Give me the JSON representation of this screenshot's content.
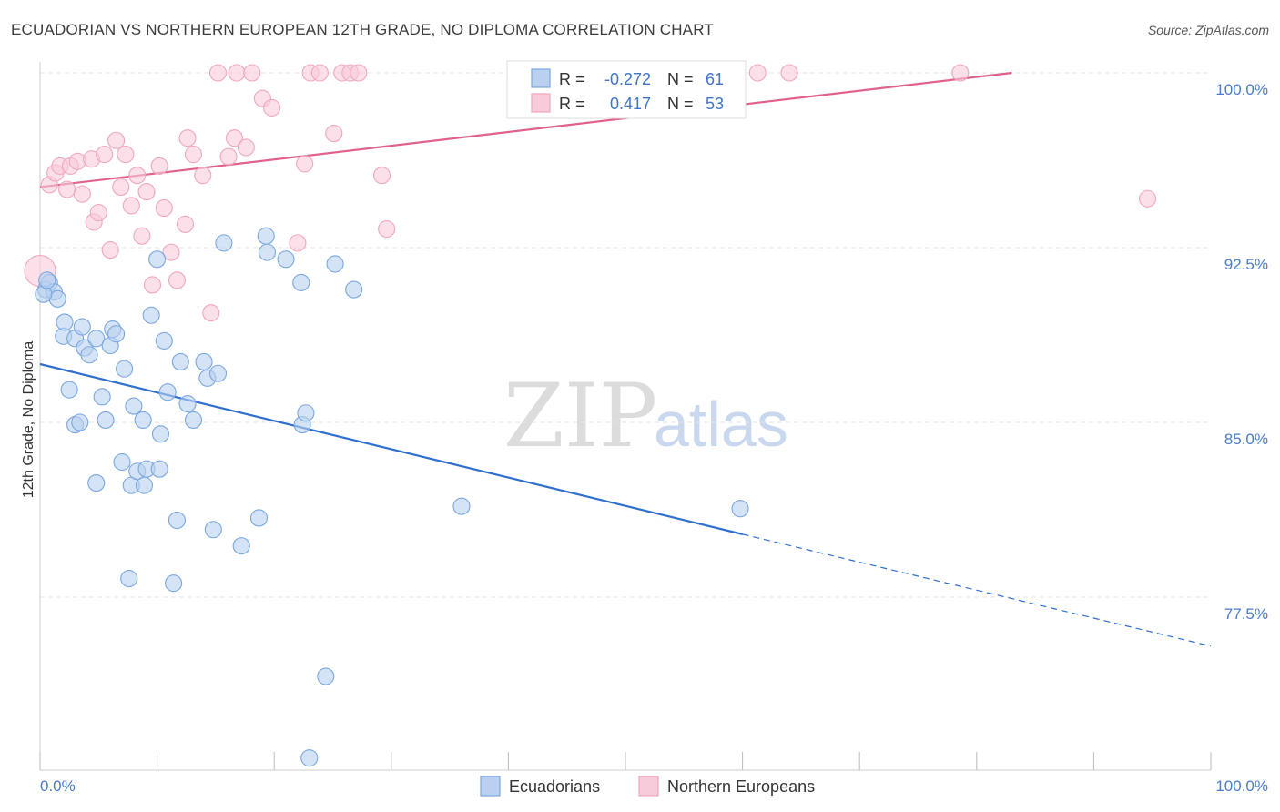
{
  "chart_data": {
    "type": "scatter",
    "title": "ECUADORIAN VS NORTHERN EUROPEAN 12TH GRADE, NO DIPLOMA CORRELATION CHART",
    "source": "Source: ZipAtlas.com",
    "ylabel": "12th Grade, No Diploma",
    "xlabel": "",
    "xlim": [
      0,
      100
    ],
    "ylim": [
      70.0,
      101.0
    ],
    "x_tick_labels": [
      "0.0%",
      "100.0%"
    ],
    "y_ticks": [
      {
        "value": 100.0,
        "label": "100.0%"
      },
      {
        "value": 92.5,
        "label": "92.5%"
      },
      {
        "value": 85.0,
        "label": "85.0%"
      },
      {
        "value": 77.5,
        "label": "77.5%"
      }
    ],
    "grid": true,
    "legend_position": "top-center",
    "watermark": {
      "zip": "ZIP",
      "atlas": "atlas"
    },
    "legend": {
      "rows": [
        {
          "r_label": "R = ",
          "r_value": "-0.272",
          "n_label": "N = ",
          "n_value": "61"
        },
        {
          "r_label": "R = ",
          "r_value": "0.417",
          "n_label": "N = ",
          "n_value": "53"
        }
      ]
    },
    "series": [
      {
        "name": "Ecuadorians",
        "color": "#7aa7e0",
        "fill": "#b9d0f0",
        "line_color": "#2f6fce",
        "trend": {
          "x0": 0.0,
          "y0": 87.5,
          "x1": 60.0,
          "y1": 80.2,
          "dash_x1": 100.0,
          "dash_y1": 75.4
        },
        "points": [
          [
            0.5,
            90.7
          ],
          [
            0.8,
            91.0
          ],
          [
            1.2,
            90.6
          ],
          [
            1.5,
            90.3
          ],
          [
            2.0,
            88.7
          ],
          [
            2.1,
            89.3
          ],
          [
            2.5,
            86.4
          ],
          [
            3.0,
            88.6
          ],
          [
            3.0,
            84.9
          ],
          [
            3.4,
            85.0
          ],
          [
            3.6,
            89.1
          ],
          [
            3.8,
            88.2
          ],
          [
            4.2,
            87.9
          ],
          [
            4.8,
            88.6
          ],
          [
            4.8,
            82.4
          ],
          [
            5.3,
            86.1
          ],
          [
            5.6,
            85.1
          ],
          [
            6.0,
            88.3
          ],
          [
            6.2,
            89.0
          ],
          [
            6.5,
            88.8
          ],
          [
            7.0,
            83.3
          ],
          [
            7.2,
            87.3
          ],
          [
            7.6,
            78.3
          ],
          [
            7.8,
            82.3
          ],
          [
            8.0,
            85.7
          ],
          [
            8.3,
            82.9
          ],
          [
            8.8,
            85.1
          ],
          [
            8.9,
            82.3
          ],
          [
            9.1,
            83.0
          ],
          [
            9.5,
            89.6
          ],
          [
            10.0,
            92.0
          ],
          [
            10.2,
            83.0
          ],
          [
            10.3,
            84.5
          ],
          [
            10.6,
            88.5
          ],
          [
            10.9,
            86.3
          ],
          [
            11.4,
            78.1
          ],
          [
            11.7,
            80.8
          ],
          [
            12.0,
            87.6
          ],
          [
            12.6,
            85.8
          ],
          [
            13.1,
            85.1
          ],
          [
            14.0,
            87.6
          ],
          [
            14.3,
            86.9
          ],
          [
            14.8,
            80.4
          ],
          [
            15.2,
            87.1
          ],
          [
            15.7,
            92.7
          ],
          [
            17.2,
            79.7
          ],
          [
            18.7,
            80.9
          ],
          [
            19.3,
            93.0
          ],
          [
            19.4,
            92.3
          ],
          [
            21.0,
            92.0
          ],
          [
            22.3,
            91.0
          ],
          [
            22.4,
            84.9
          ],
          [
            22.7,
            85.4
          ],
          [
            23.0,
            70.6
          ],
          [
            24.4,
            74.1
          ],
          [
            25.2,
            91.8
          ],
          [
            26.8,
            90.7
          ],
          [
            36.0,
            81.4
          ],
          [
            59.8,
            81.3
          ],
          [
            0.3,
            90.5
          ],
          [
            0.6,
            91.1
          ]
        ]
      },
      {
        "name": "Northern Europeans",
        "color": "#f0a6bf",
        "fill": "#f8cbda",
        "line_color": "#e0628c",
        "trend": {
          "x0": 0.0,
          "y0": 95.1,
          "x1": 83.0,
          "y1": 100.0
        },
        "points": [
          [
            0.0,
            91.5
          ],
          [
            0.8,
            95.2
          ],
          [
            1.3,
            95.7
          ],
          [
            1.7,
            96.0
          ],
          [
            2.3,
            95.0
          ],
          [
            2.6,
            96.0
          ],
          [
            3.2,
            96.2
          ],
          [
            3.6,
            94.8
          ],
          [
            4.4,
            96.3
          ],
          [
            4.6,
            93.6
          ],
          [
            5.0,
            94.0
          ],
          [
            5.5,
            96.5
          ],
          [
            6.0,
            92.4
          ],
          [
            6.5,
            97.1
          ],
          [
            6.9,
            95.1
          ],
          [
            7.3,
            96.5
          ],
          [
            7.8,
            94.3
          ],
          [
            8.3,
            95.6
          ],
          [
            8.7,
            93.0
          ],
          [
            9.1,
            94.9
          ],
          [
            9.6,
            90.9
          ],
          [
            10.2,
            96.0
          ],
          [
            10.6,
            94.2
          ],
          [
            11.2,
            92.3
          ],
          [
            11.7,
            91.1
          ],
          [
            12.4,
            93.5
          ],
          [
            12.6,
            97.2
          ],
          [
            13.1,
            96.5
          ],
          [
            13.9,
            95.6
          ],
          [
            14.6,
            89.7
          ],
          [
            15.2,
            100.0
          ],
          [
            16.1,
            96.4
          ],
          [
            16.6,
            97.2
          ],
          [
            16.8,
            100.0
          ],
          [
            17.6,
            96.8
          ],
          [
            18.1,
            100.0
          ],
          [
            19.0,
            98.9
          ],
          [
            19.8,
            98.5
          ],
          [
            22.0,
            92.7
          ],
          [
            22.6,
            96.1
          ],
          [
            23.1,
            100.0
          ],
          [
            23.9,
            100.0
          ],
          [
            25.1,
            97.4
          ],
          [
            25.8,
            100.0
          ],
          [
            26.5,
            100.0
          ],
          [
            27.2,
            100.0
          ],
          [
            29.2,
            95.6
          ],
          [
            29.6,
            93.3
          ],
          [
            40.9,
            100.0
          ],
          [
            61.3,
            100.0
          ],
          [
            64.0,
            100.0
          ],
          [
            78.6,
            100.0
          ],
          [
            94.6,
            94.6
          ]
        ]
      }
    ]
  }
}
